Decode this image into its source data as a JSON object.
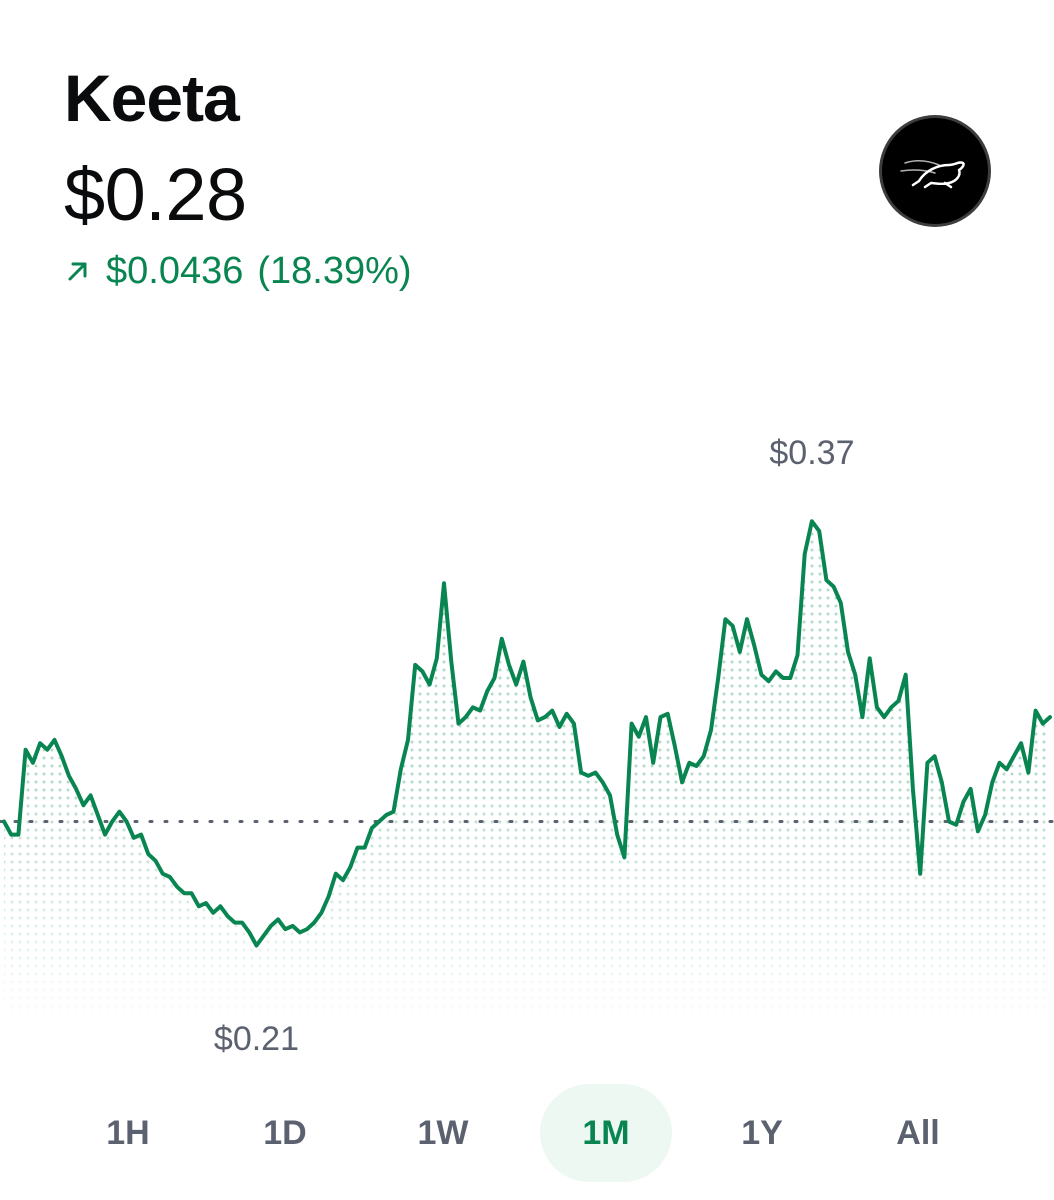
{
  "asset": {
    "name": "Keeta",
    "price": "$0.28",
    "change_amount": "$0.0436",
    "change_percent": "(18.39%)",
    "change_direction_icon": "arrow-up-right-icon",
    "logo_icon": "keeta-logo-icon"
  },
  "chart": {
    "high_label": "$0.37",
    "low_label": "$0.21"
  },
  "chart_data": {
    "type": "line",
    "title": "",
    "xlabel": "",
    "ylabel": "",
    "ylim": [
      0.2,
      0.38
    ],
    "reference_value": 0.25,
    "high": 0.37,
    "low": 0.21,
    "grid": false,
    "series": [
      {
        "values": [
          0.25,
          0.246,
          0.246,
          0.272,
          0.268,
          0.274,
          0.272,
          0.275,
          0.27,
          0.264,
          0.26,
          0.255,
          0.258,
          0.252,
          0.246,
          0.25,
          0.253,
          0.25,
          0.245,
          0.246,
          0.24,
          0.238,
          0.234,
          0.233,
          0.23,
          0.228,
          0.228,
          0.224,
          0.225,
          0.222,
          0.224,
          0.221,
          0.219,
          0.219,
          0.216,
          0.212,
          0.215,
          0.218,
          0.22,
          0.217,
          0.218,
          0.216,
          0.217,
          0.219,
          0.222,
          0.227,
          0.234,
          0.232,
          0.236,
          0.242,
          0.242,
          0.248,
          0.25,
          0.252,
          0.253,
          0.266,
          0.275,
          0.298,
          0.296,
          0.292,
          0.3,
          0.323,
          0.299,
          0.28,
          0.282,
          0.285,
          0.284,
          0.29,
          0.294,
          0.306,
          0.298,
          0.292,
          0.299,
          0.288,
          0.281,
          0.282,
          0.284,
          0.279,
          0.283,
          0.28,
          0.265,
          0.264,
          0.265,
          0.262,
          0.258,
          0.246,
          0.239,
          0.28,
          0.276,
          0.282,
          0.268,
          0.282,
          0.283,
          0.273,
          0.262,
          0.268,
          0.267,
          0.27,
          0.278,
          0.294,
          0.312,
          0.31,
          0.302,
          0.312,
          0.304,
          0.295,
          0.293,
          0.296,
          0.294,
          0.294,
          0.301,
          0.332,
          0.342,
          0.339,
          0.324,
          0.322,
          0.317,
          0.302,
          0.295,
          0.282,
          0.3,
          0.285,
          0.282,
          0.285,
          0.287,
          0.295,
          0.26,
          0.234,
          0.268,
          0.27,
          0.262,
          0.25,
          0.249,
          0.256,
          0.26,
          0.247,
          0.252,
          0.262,
          0.268,
          0.266,
          0.27,
          0.274,
          0.265,
          0.284,
          0.28,
          0.282
        ]
      }
    ]
  },
  "ranges": {
    "active": "1M",
    "items": [
      {
        "label": "1H"
      },
      {
        "label": "1D"
      },
      {
        "label": "1W"
      },
      {
        "label": "1M"
      },
      {
        "label": "1Y"
      },
      {
        "label": "All"
      }
    ]
  }
}
